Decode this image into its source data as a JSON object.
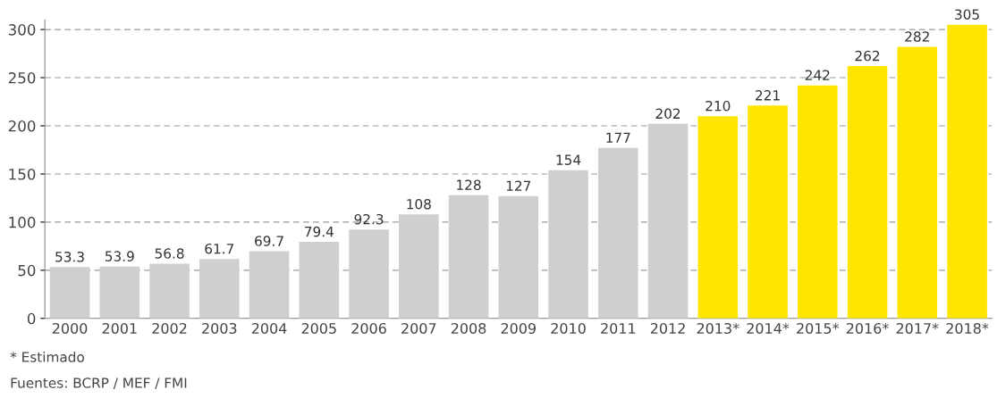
{
  "chart_data": {
    "type": "bar",
    "categories": [
      "2000",
      "2001",
      "2002",
      "2003",
      "2004",
      "2005",
      "2006",
      "2007",
      "2008",
      "2009",
      "2010",
      "2011",
      "2012",
      "2013*",
      "2014*",
      "2015*",
      "2016*",
      "2017*",
      "2018*"
    ],
    "values": [
      53.3,
      53.9,
      56.8,
      61.7,
      69.7,
      79.4,
      92.3,
      108,
      128,
      127,
      154,
      177,
      202,
      210,
      221,
      242,
      262,
      282,
      305
    ],
    "colors": [
      "#cfcfcf",
      "#cfcfcf",
      "#cfcfcf",
      "#cfcfcf",
      "#cfcfcf",
      "#cfcfcf",
      "#cfcfcf",
      "#cfcfcf",
      "#cfcfcf",
      "#cfcfcf",
      "#cfcfcf",
      "#cfcfcf",
      "#cfcfcf",
      "#ffe600",
      "#ffe600",
      "#ffe600",
      "#ffe600",
      "#ffe600",
      "#ffe600"
    ],
    "ylim": [
      0,
      310
    ],
    "yticks": [
      0,
      50,
      100,
      150,
      200,
      250,
      300
    ],
    "grid": "y",
    "data_labels": true,
    "annotations": [
      "* Estimado",
      "Fuentes: BCRP / MEF / FMI"
    ]
  }
}
